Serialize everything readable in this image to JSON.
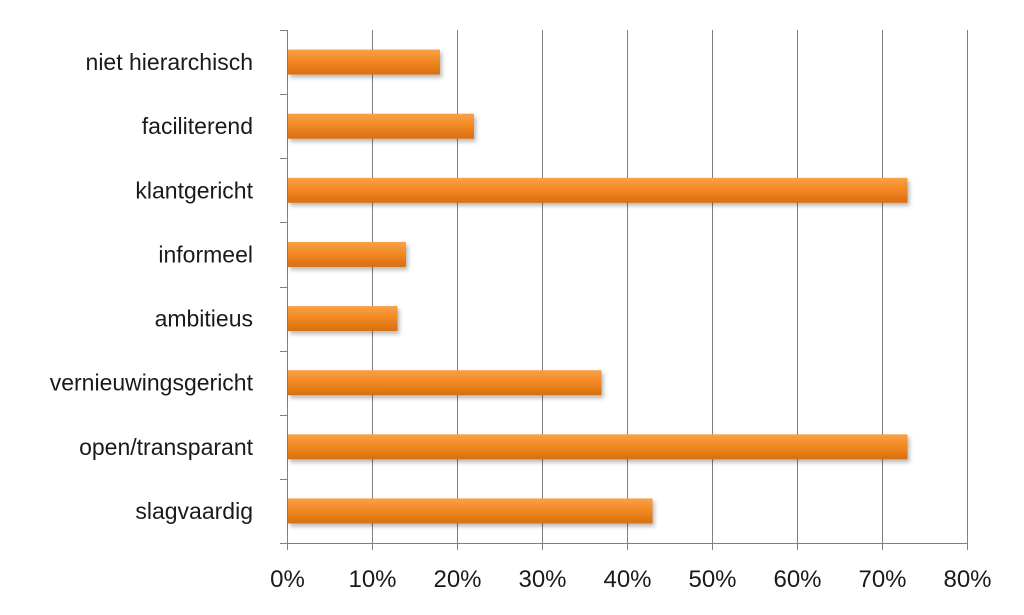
{
  "chart_data": {
    "type": "bar",
    "orientation": "horizontal",
    "title": "",
    "xlabel": "",
    "ylabel": "",
    "categories": [
      "niet hierarchisch",
      "faciliterend",
      "klantgericht",
      "informeel",
      "ambitieus",
      "vernieuwingsgericht",
      "open/transparant",
      "slagvaardig"
    ],
    "values": [
      0.18,
      0.22,
      0.73,
      0.14,
      0.13,
      0.37,
      0.73,
      0.43
    ],
    "xlim": [
      0,
      0.8
    ],
    "xticks": [
      0,
      0.1,
      0.2,
      0.3,
      0.4,
      0.5,
      0.6,
      0.7,
      0.8
    ],
    "xtick_labels": [
      "0%",
      "10%",
      "20%",
      "30%",
      "40%",
      "50%",
      "60%",
      "70%",
      "80%"
    ],
    "grid": true,
    "legend": "none",
    "colors": {
      "bar_light": "#f9a04a",
      "bar_mid": "#f28a24",
      "bar_dark": "#d96d10",
      "grid": "#7f7f7f",
      "axis": "#7f7f7f",
      "text": "#1a1a1a"
    }
  }
}
